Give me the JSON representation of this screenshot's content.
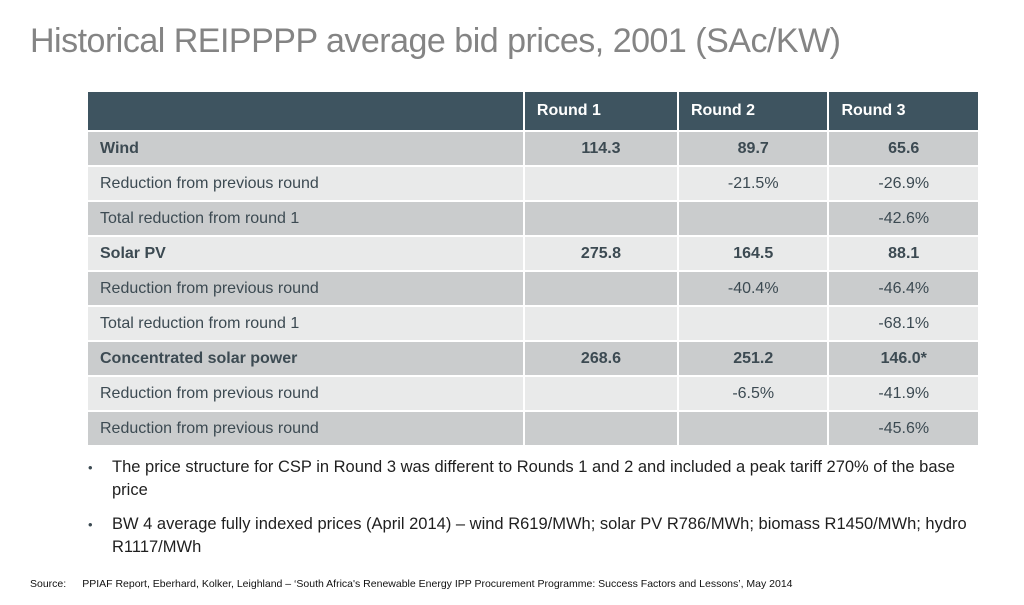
{
  "slide": {
    "title": "Historical REIPPPP average bid prices, 2001 (SAc/KW)"
  },
  "table": {
    "columns": [
      "",
      "Round 1",
      "Round 2",
      "Round 3"
    ],
    "rows": [
      {
        "label": "Wind",
        "values": [
          "114.3",
          "89.7",
          "65.6"
        ]
      },
      {
        "label": "Reduction from previous round",
        "values": [
          "",
          "-21.5%",
          "-26.9%"
        ]
      },
      {
        "label": "Total reduction from round 1",
        "values": [
          "",
          "",
          "-42.6%"
        ]
      },
      {
        "label": "Solar PV",
        "values": [
          "275.8",
          "164.5",
          "88.1"
        ]
      },
      {
        "label": "Reduction from previous round",
        "values": [
          "",
          "-40.4%",
          "-46.4%"
        ]
      },
      {
        "label": "Total reduction from round 1",
        "values": [
          "",
          "",
          "-68.1%"
        ]
      },
      {
        "label": "Concentrated solar power",
        "values": [
          "268.6",
          "251.2",
          "146.0*"
        ]
      },
      {
        "label": "Reduction from previous round",
        "values": [
          "",
          "-6.5%",
          "-41.9%"
        ]
      },
      {
        "label": "Reduction from previous round",
        "values": [
          "",
          "",
          "-45.6%"
        ]
      }
    ]
  },
  "notes": [
    "The price structure for CSP in Round 3 was different to Rounds 1 and 2 and included a peak tariff 270% of the base price",
    "BW 4 average fully indexed prices (April 2014) – wind R619/MWh; solar PV R786/MWh; biomass R1450/MWh; hydro R1117/MWh"
  ],
  "source": {
    "label": "Source:",
    "text": "PPIAF Report, Eberhard, Kolker, Leighland – ‘South Africa's Renewable Energy IPP Procurement Programme: Success Factors and Lessons’, May 2014"
  },
  "bullet_glyph": "•",
  "colors": {
    "header_background": "#3e5460",
    "row_dark": "#cacccd",
    "row_light": "#e9eaea",
    "table_text": "#3c4a52",
    "title_text": "#848484"
  }
}
